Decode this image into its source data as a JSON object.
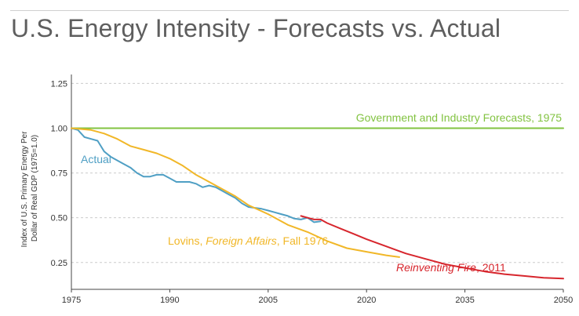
{
  "title": "U.S. Energy Intensity - Forecasts vs. Actual",
  "chart_data": {
    "type": "line",
    "title": "U.S. Energy Intensity - Forecasts vs. Actual",
    "ylabel_lines": [
      "Index of U.S. Primary Energy Per",
      "Dollar of Real GDP (1975=1.0)"
    ],
    "xlim": [
      1975,
      2050
    ],
    "ylim": [
      0.1,
      1.3
    ],
    "xticks": [
      1975,
      1990,
      2005,
      2020,
      2035,
      2050
    ],
    "yticks": [
      0.25,
      0.5,
      0.75,
      1.0,
      1.25
    ],
    "ytick_labels": [
      "0.25",
      "0.50",
      "0.75",
      "1.00",
      "1.25"
    ],
    "grid": "horizontal-dashed",
    "series": [
      {
        "name": "Government and Industry Forecasts, 1975",
        "color": "#82c341",
        "x": [
          1975,
          2050
        ],
        "y": [
          1.0,
          1.0
        ]
      },
      {
        "name": "Actual",
        "color": "#4f9fc4",
        "x": [
          1975,
          1976,
          1977,
          1978,
          1979,
          1980,
          1981,
          1982,
          1983,
          1984,
          1985,
          1986,
          1987,
          1988,
          1989,
          1990,
          1991,
          1992,
          1993,
          1994,
          1995,
          1996,
          1997,
          1998,
          1999,
          2000,
          2001,
          2002,
          2003,
          2004,
          2005,
          2006,
          2007,
          2008,
          2009,
          2010,
          2011,
          2012,
          2013
        ],
        "y": [
          1.0,
          0.99,
          0.95,
          0.94,
          0.93,
          0.87,
          0.84,
          0.82,
          0.8,
          0.78,
          0.75,
          0.73,
          0.73,
          0.74,
          0.74,
          0.72,
          0.7,
          0.7,
          0.7,
          0.69,
          0.67,
          0.68,
          0.67,
          0.65,
          0.63,
          0.61,
          0.58,
          0.56,
          0.555,
          0.55,
          0.54,
          0.53,
          0.52,
          0.51,
          0.495,
          0.49,
          0.5,
          0.475,
          0.48
        ]
      },
      {
        "name": "Lovins, Foreign Affairs, Fall 1976",
        "label_parts": [
          "Lovins, ",
          "Foreign Affairs",
          ", Fall 1976"
        ],
        "color": "#f1b728",
        "x": [
          1975,
          1978,
          1980,
          1982,
          1984,
          1986,
          1988,
          1990,
          1992,
          1994,
          1996,
          1998,
          2000,
          2002,
          2005,
          2008,
          2011,
          2014,
          2017,
          2020,
          2023,
          2025
        ],
        "y": [
          1.0,
          0.99,
          0.97,
          0.94,
          0.9,
          0.88,
          0.86,
          0.83,
          0.79,
          0.74,
          0.7,
          0.66,
          0.62,
          0.57,
          0.52,
          0.46,
          0.42,
          0.37,
          0.33,
          0.31,
          0.29,
          0.28
        ]
      },
      {
        "name": "Reinventing Fire, 2011",
        "label_parts": [
          "Reinventing Fire",
          ", 2011"
        ],
        "color": "#d7262d",
        "x": [
          2010,
          2011,
          2012,
          2013,
          2014,
          2016,
          2018,
          2020,
          2023,
          2026,
          2029,
          2032,
          2035,
          2038,
          2041,
          2044,
          2047,
          2050
        ],
        "y": [
          0.51,
          0.5,
          0.49,
          0.49,
          0.47,
          0.44,
          0.41,
          0.38,
          0.34,
          0.3,
          0.27,
          0.24,
          0.22,
          0.2,
          0.185,
          0.175,
          0.165,
          0.16
        ]
      }
    ]
  }
}
